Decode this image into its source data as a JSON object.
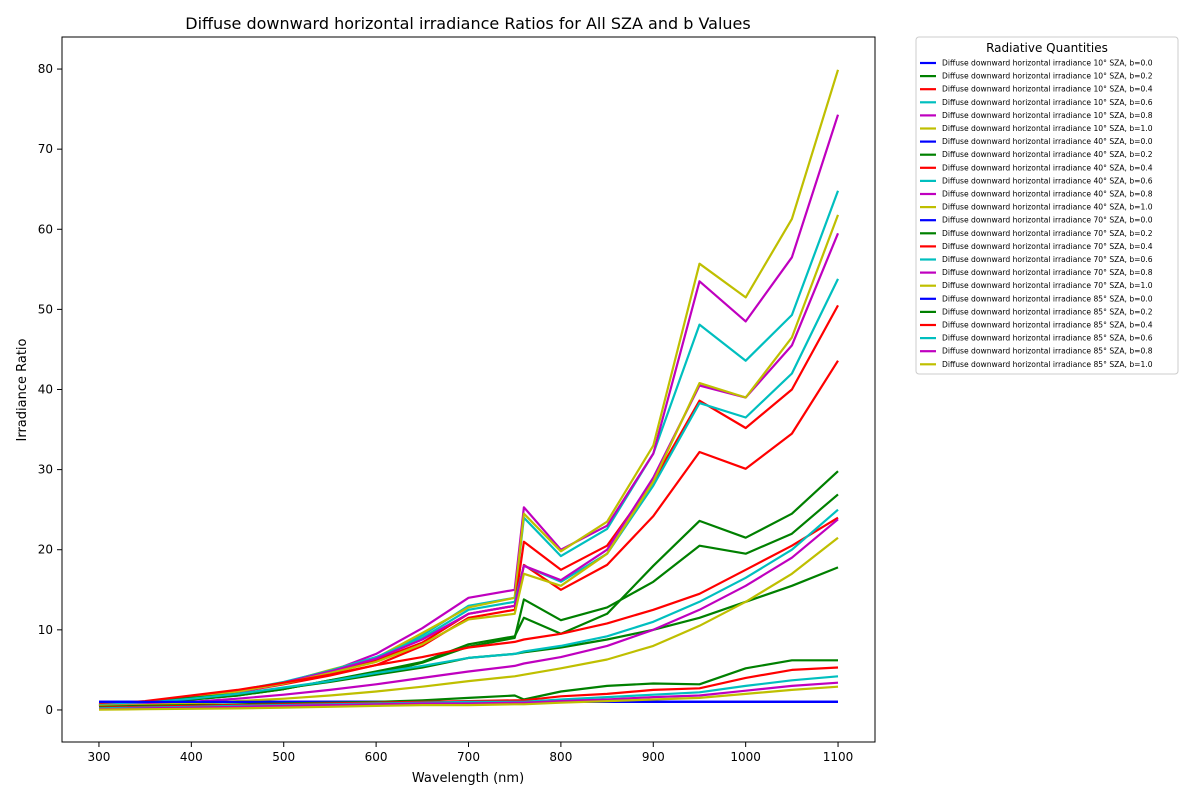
{
  "chart_data": {
    "type": "line",
    "title": "Diffuse downward horizontal irradiance Ratios for All SZA and b Values",
    "xlabel": "Wavelength (nm)",
    "ylabel": "Irradiance Ratio",
    "xlim": [
      260,
      1140
    ],
    "ylim": [
      -4,
      84
    ],
    "xticks": [
      300,
      400,
      500,
      600,
      700,
      800,
      900,
      1000,
      1100
    ],
    "yticks": [
      0,
      10,
      20,
      30,
      40,
      50,
      60,
      70,
      80
    ],
    "grid": false,
    "legend": {
      "title": "Radiative Quantities",
      "placement": "outside-right-top"
    },
    "colors": {
      "b=0.0": "#0000ff",
      "b=0.2": "#008000",
      "b=0.4": "#ff0000",
      "b=0.6": "#00bfbf",
      "b=0.8": "#bf00bf",
      "b=1.0": "#bfbf00"
    },
    "x": [
      300,
      350,
      400,
      450,
      500,
      550,
      600,
      650,
      700,
      750,
      760,
      800,
      850,
      900,
      950,
      1000,
      1050,
      1100
    ],
    "series": [
      {
        "name": "Diffuse downward horizontal irradiance 10° SZA, b=0.0",
        "color": "#0000ff",
        "values": [
          1,
          1,
          1,
          1,
          1,
          1,
          1,
          1,
          1,
          1,
          1,
          1,
          1,
          1,
          1,
          1,
          1,
          1
        ]
      },
      {
        "name": "Diffuse downward horizontal irradiance 10° SZA, b=0.2",
        "color": "#008000",
        "values": [
          0.5,
          0.7,
          1.3,
          1.8,
          2.6,
          3.7,
          4.5,
          5.9,
          7.9,
          9.0,
          13.8,
          11.2,
          12.8,
          16.0,
          20.5,
          19.5,
          22.0,
          26.9
        ]
      },
      {
        "name": "Diffuse downward horizontal irradiance 10° SZA, b=0.4",
        "color": "#ff0000",
        "values": [
          0.5,
          0.8,
          1.5,
          2.2,
          3.2,
          4.3,
          5.6,
          8.0,
          11.5,
          12.5,
          18.1,
          15.0,
          18.1,
          24.2,
          32.2,
          30.1,
          34.5,
          43.6
        ]
      },
      {
        "name": "Diffuse downward horizontal irradiance 10° SZA, b=0.6",
        "color": "#00bfbf",
        "values": [
          0.5,
          0.8,
          1.5,
          2.3,
          3.4,
          4.8,
          6.3,
          9.3,
          13.0,
          14.0,
          24.0,
          19.2,
          22.6,
          32.0,
          48.1,
          43.6,
          49.3,
          64.8
        ]
      },
      {
        "name": "Diffuse downward horizontal irradiance 10° SZA, b=0.8",
        "color": "#bf00bf",
        "values": [
          0.5,
          0.8,
          1.5,
          2.2,
          3.3,
          4.8,
          7.0,
          10.2,
          14.0,
          15.0,
          25.3,
          20.0,
          23.0,
          32.0,
          53.5,
          48.5,
          56.5,
          74.3
        ]
      },
      {
        "name": "Diffuse downward horizontal irradiance 10° SZA, b=1.0",
        "color": "#bfbf00",
        "values": [
          0.5,
          0.8,
          1.5,
          2.3,
          3.4,
          5.0,
          6.5,
          9.6,
          12.8,
          14.0,
          24.5,
          19.8,
          23.5,
          33.0,
          55.7,
          51.5,
          61.3,
          79.9
        ]
      },
      {
        "name": "Diffuse downward horizontal irradiance 40° SZA, b=0.0",
        "color": "#0000ff",
        "values": [
          1,
          1,
          1,
          1,
          1,
          1,
          1,
          1,
          1,
          1,
          1,
          1,
          1,
          1,
          1,
          1,
          1,
          1
        ]
      },
      {
        "name": "Diffuse downward horizontal irradiance 40° SZA, b=0.2",
        "color": "#008000",
        "values": [
          0.5,
          0.7,
          1.3,
          1.8,
          2.6,
          3.7,
          4.8,
          6.0,
          8.2,
          9.2,
          11.5,
          9.5,
          12.0,
          18.0,
          23.6,
          21.5,
          24.5,
          29.8
        ]
      },
      {
        "name": "Diffuse downward horizontal irradiance 40° SZA, b=0.4",
        "color": "#ff0000",
        "values": [
          0.5,
          0.8,
          1.6,
          2.3,
          3.4,
          4.6,
          6.2,
          8.4,
          12.0,
          13.0,
          21.0,
          17.5,
          20.5,
          28.5,
          38.6,
          35.2,
          40.0,
          50.5
        ]
      },
      {
        "name": "Diffuse downward horizontal irradiance 40° SZA, b=0.6",
        "color": "#00bfbf",
        "values": [
          0.5,
          0.8,
          1.6,
          2.4,
          3.5,
          4.9,
          6.6,
          9.0,
          12.5,
          13.5,
          18.0,
          16.0,
          19.5,
          28.0,
          38.3,
          36.5,
          42.0,
          53.8
        ]
      },
      {
        "name": "Diffuse downward horizontal irradiance 40° SZA, b=0.8",
        "color": "#bf00bf",
        "values": [
          0.5,
          0.8,
          1.5,
          2.3,
          3.4,
          4.8,
          6.4,
          8.8,
          12.0,
          13.0,
          18.0,
          16.2,
          20.0,
          29.0,
          40.5,
          39.0,
          45.5,
          59.5
        ]
      },
      {
        "name": "Diffuse downward horizontal irradiance 40° SZA, b=1.0",
        "color": "#bfbf00",
        "values": [
          0.5,
          0.8,
          1.5,
          2.3,
          3.3,
          4.6,
          6.0,
          8.2,
          11.3,
          12.0,
          17.0,
          15.5,
          19.5,
          28.5,
          40.8,
          39.0,
          46.5,
          61.8
        ]
      },
      {
        "name": "Diffuse downward horizontal irradiance 70° SZA, b=0.0",
        "color": "#0000ff",
        "values": [
          1,
          1,
          1,
          1,
          1,
          1,
          1,
          1,
          1,
          1,
          1,
          1,
          1,
          1,
          1,
          1,
          1,
          1
        ]
      },
      {
        "name": "Diffuse downward horizontal irradiance 70° SZA, b=0.2",
        "color": "#008000",
        "values": [
          0.7,
          1.0,
          1.5,
          2.0,
          2.7,
          3.5,
          4.4,
          5.3,
          6.5,
          7.0,
          7.2,
          7.8,
          8.8,
          10.0,
          11.5,
          13.5,
          15.5,
          17.8
        ]
      },
      {
        "name": "Diffuse downward horizontal irradiance 70° SZA, b=0.4",
        "color": "#ff0000",
        "values": [
          0.7,
          1.1,
          1.8,
          2.5,
          3.4,
          4.4,
          5.6,
          6.6,
          7.8,
          8.5,
          8.8,
          9.5,
          10.8,
          12.5,
          14.5,
          17.5,
          20.5,
          24.0
        ]
      },
      {
        "name": "Diffuse downward horizontal irradiance 70° SZA, b=0.6",
        "color": "#00bfbf",
        "values": [
          0.6,
          0.9,
          1.4,
          2.0,
          2.8,
          3.6,
          4.6,
          5.5,
          6.5,
          7.0,
          7.3,
          8.0,
          9.2,
          11.0,
          13.5,
          16.5,
          20.0,
          25.0
        ]
      },
      {
        "name": "Diffuse downward horizontal irradiance 70° SZA, b=0.8",
        "color": "#bf00bf",
        "values": [
          0.5,
          0.7,
          1.0,
          1.4,
          1.9,
          2.5,
          3.2,
          4.0,
          4.8,
          5.5,
          5.8,
          6.6,
          8.0,
          10.0,
          12.5,
          15.5,
          19.0,
          23.8
        ]
      },
      {
        "name": "Diffuse downward horizontal irradiance 70° SZA, b=1.0",
        "color": "#bfbf00",
        "values": [
          0.5,
          0.6,
          0.8,
          1.1,
          1.4,
          1.8,
          2.3,
          2.9,
          3.6,
          4.2,
          4.4,
          5.2,
          6.3,
          8.0,
          10.5,
          13.5,
          17.0,
          21.5
        ]
      },
      {
        "name": "Diffuse downward horizontal irradiance 85° SZA, b=0.0",
        "color": "#0000ff",
        "values": [
          1,
          1,
          1,
          1,
          1,
          1,
          1,
          1,
          1,
          1,
          1,
          1,
          1,
          1,
          1,
          1,
          1,
          1
        ]
      },
      {
        "name": "Diffuse downward horizontal irradiance 85° SZA, b=0.2",
        "color": "#008000",
        "values": [
          0.4,
          0.5,
          0.6,
          0.7,
          0.8,
          0.9,
          1.0,
          1.2,
          1.5,
          1.8,
          1.3,
          2.3,
          3.0,
          3.3,
          3.2,
          5.2,
          6.2,
          6.2
        ]
      },
      {
        "name": "Diffuse downward horizontal irradiance 85° SZA, b=0.4",
        "color": "#ff0000",
        "values": [
          0.3,
          0.4,
          0.5,
          0.6,
          0.7,
          0.8,
          0.9,
          1.0,
          1.1,
          1.2,
          1.2,
          1.7,
          2.0,
          2.5,
          2.7,
          4.0,
          5.0,
          5.3
        ]
      },
      {
        "name": "Diffuse downward horizontal irradiance 85° SZA, b=0.6",
        "color": "#00bfbf",
        "values": [
          0.2,
          0.3,
          0.4,
          0.5,
          0.6,
          0.7,
          0.8,
          0.9,
          1.0,
          1.0,
          1.0,
          1.3,
          1.6,
          1.9,
          2.2,
          3.0,
          3.7,
          4.2
        ]
      },
      {
        "name": "Diffuse downward horizontal irradiance 85° SZA, b=0.8",
        "color": "#bf00bf",
        "values": [
          0.1,
          0.2,
          0.3,
          0.4,
          0.5,
          0.6,
          0.7,
          0.8,
          0.8,
          0.9,
          0.9,
          1.1,
          1.3,
          1.6,
          1.8,
          2.4,
          3.0,
          3.4
        ]
      },
      {
        "name": "Diffuse downward horizontal irradiance 85° SZA, b=1.0",
        "color": "#bfbf00",
        "values": [
          0.05,
          0.1,
          0.15,
          0.2,
          0.3,
          0.4,
          0.5,
          0.6,
          0.6,
          0.7,
          0.7,
          0.9,
          1.1,
          1.3,
          1.5,
          2.0,
          2.5,
          2.9
        ]
      }
    ]
  }
}
